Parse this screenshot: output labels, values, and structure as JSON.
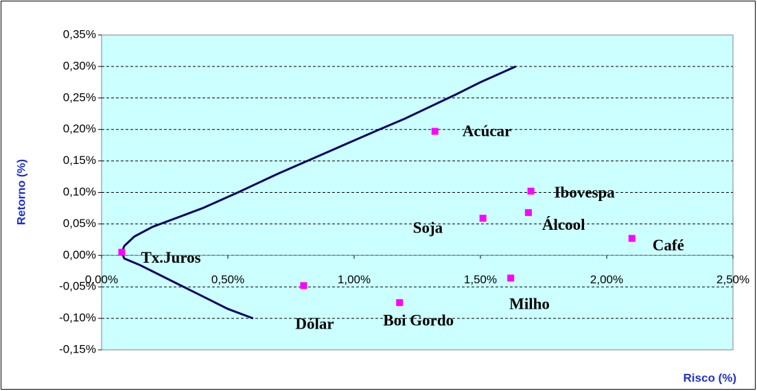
{
  "chart_data": {
    "type": "scatter",
    "xlabel": "Risco (%)",
    "ylabel": "Retorno (%)",
    "labels": [
      "Tx.Juros",
      "Dólar",
      "Boi Gordo",
      "Milho",
      "Soja",
      "Álcool",
      "Ibovespa",
      "Acúcar",
      "Café"
    ],
    "x": [
      0.08,
      0.8,
      1.18,
      1.62,
      1.51,
      1.69,
      1.7,
      1.32,
      2.1
    ],
    "values": [
      0.005,
      -0.048,
      -0.075,
      -0.036,
      0.059,
      0.068,
      0.102,
      0.197,
      0.027
    ],
    "color": "#ff00ff",
    "line": {
      "color": "#000066",
      "x": [
        0.6,
        0.5,
        0.4,
        0.3,
        0.2,
        0.15,
        0.09,
        0.08,
        0.09,
        0.13,
        0.2,
        0.3,
        0.4,
        0.54,
        0.7,
        0.9,
        1.1,
        1.2,
        1.4,
        1.5,
        1.64
      ],
      "values": [
        -0.1,
        -0.085,
        -0.065,
        -0.045,
        -0.025,
        -0.015,
        -0.005,
        0.005,
        0.015,
        0.03,
        0.045,
        0.06,
        0.075,
        0.1,
        0.13,
        0.165,
        0.2,
        0.217,
        0.255,
        0.275,
        0.3
      ]
    },
    "xlim": [
      0,
      2.5
    ],
    "ylim": [
      -0.15,
      0.35
    ],
    "xticks": [
      {
        "value": 0,
        "label": "0,00%"
      },
      {
        "value": 0.5,
        "label": "0,50%"
      },
      {
        "value": 1,
        "label": "1,00%"
      },
      {
        "value": 1.5,
        "label": "1,50%"
      },
      {
        "value": 2,
        "label": "2,00%"
      },
      {
        "value": 2.5,
        "label": "2,50%"
      }
    ],
    "yticks": [
      {
        "value": -0.15,
        "label": "-0,15%"
      },
      {
        "value": -0.1,
        "label": "-0,10%"
      },
      {
        "value": -0.05,
        "label": "-0,05%"
      },
      {
        "value": 0,
        "label": "0,00%"
      },
      {
        "value": 0.05,
        "label": "0,05%"
      },
      {
        "value": 0.1,
        "label": "0,10%"
      },
      {
        "value": 0.15,
        "label": "0,15%"
      },
      {
        "value": 0.2,
        "label": "0,20%"
      },
      {
        "value": 0.25,
        "label": "0,25%"
      },
      {
        "value": 0.3,
        "label": "0,30%"
      },
      {
        "value": 0.35,
        "label": "0,35%"
      }
    ],
    "grid": true
  }
}
